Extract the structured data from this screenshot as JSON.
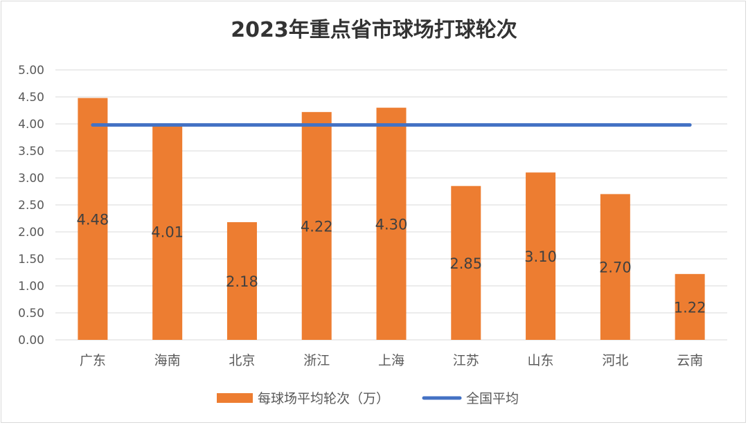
{
  "chart_data": {
    "type": "bar",
    "title": "2023年重点省市球场打球轮次",
    "categories": [
      "广东",
      "海南",
      "北京",
      "浙江",
      "上海",
      "江苏",
      "山东",
      "河北",
      "云南"
    ],
    "series": [
      {
        "name": "每球场平均轮次（万）",
        "type": "bar",
        "color": "#ED7D31",
        "values": [
          4.48,
          4.01,
          2.18,
          4.22,
          4.3,
          2.85,
          3.1,
          2.7,
          1.22
        ],
        "labels": [
          "4.48",
          "4.01",
          "2.18",
          "4.22",
          "4.30",
          "2.85",
          "3.10",
          "2.70",
          "1.22"
        ]
      },
      {
        "name": "全国平均",
        "type": "line",
        "color": "#4472C4",
        "values": [
          3.98,
          3.98,
          3.98,
          3.98,
          3.98,
          3.98,
          3.98,
          3.98,
          3.98
        ]
      }
    ],
    "yticks": [
      "0.00",
      "0.50",
      "1.00",
      "1.50",
      "2.00",
      "2.50",
      "3.00",
      "3.50",
      "4.00",
      "4.50",
      "5.00"
    ],
    "ylim": [
      0,
      5
    ],
    "grid": true,
    "legend_position": "bottom"
  }
}
